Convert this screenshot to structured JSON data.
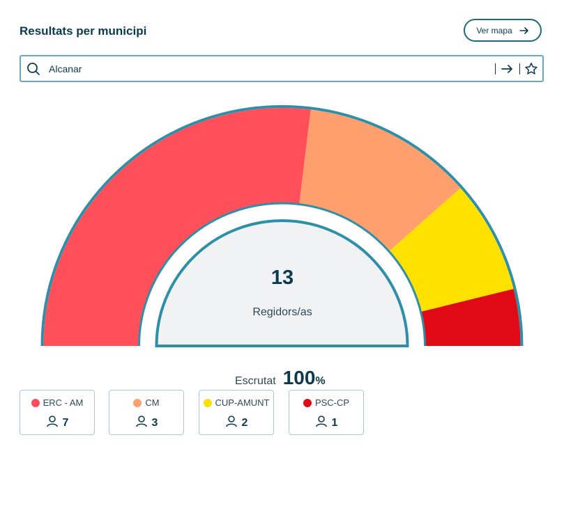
{
  "header": {
    "title": "Resultats per municipi",
    "map_button_label": "Ver mapa"
  },
  "search": {
    "value": "Alcanar"
  },
  "center": {
    "total": "13",
    "label": "Regidors/as"
  },
  "scrutiny": {
    "label": "Escrutat",
    "value": "100",
    "unit": "%"
  },
  "colors": {
    "accent": "#2e8fa8",
    "ERC - AM": "#ff4f5a",
    "CM": "#ff9f6d",
    "CUP-AMUNT": "#ffe100",
    "PSC-CP": "#e00a17",
    "center_fill": "#f0f2f4"
  },
  "chart_data": {
    "type": "pie",
    "subtype": "semicircle-hemicycle",
    "categories": [
      "ERC - AM",
      "CM",
      "CUP-AMUNT",
      "PSC-CP"
    ],
    "values": [
      7,
      3,
      2,
      1
    ],
    "total": 13,
    "colors": [
      "#ff4f5a",
      "#ff9f6d",
      "#ffe100",
      "#e00a17"
    ]
  },
  "legend": [
    {
      "name": "ERC - AM",
      "seats": "7",
      "color": "#ff4f5a"
    },
    {
      "name": "CM",
      "seats": "3",
      "color": "#ff9f6d"
    },
    {
      "name": "CUP-AMUNT",
      "seats": "2",
      "color": "#ffe100"
    },
    {
      "name": "PSC-CP",
      "seats": "1",
      "color": "#e00a17"
    }
  ]
}
